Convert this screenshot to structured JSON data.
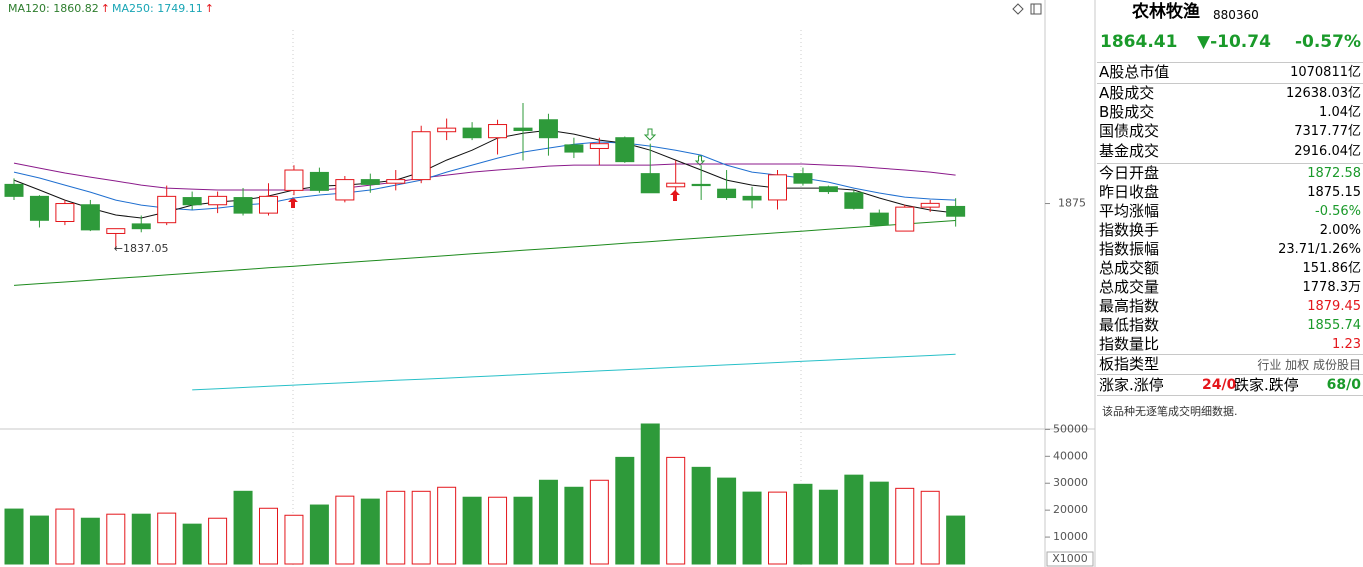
{
  "legend": [
    {
      "text": "MA120: 1860.82",
      "arrow": "↑",
      "color": "#2d7d2d"
    },
    {
      "text": "MA250: 1749.11",
      "arrow": "↑",
      "color": "#18a5b5"
    }
  ],
  "chart_data": [
    {
      "type": "candlestick",
      "ylim": [
        1690,
        2030
      ],
      "yticks": [
        1875
      ],
      "up_color": "#e4161b",
      "down_color": "#2e9a3a",
      "low_label": "←1837.05",
      "open": [
        1891,
        1881,
        1860,
        1874,
        1850,
        1858,
        1859,
        1880,
        1874,
        1880,
        1867,
        1886,
        1901,
        1878,
        1895,
        1892,
        1895,
        1935,
        1938,
        1930,
        1938,
        1945,
        1924,
        1921,
        1930,
        1900,
        1889,
        1891,
        1887,
        1881,
        1878,
        1900,
        1889,
        1884,
        1867,
        1852,
        1872,
        1872.58
      ],
      "high": [
        1896,
        1882,
        1878,
        1878,
        1854,
        1865,
        1890,
        1885,
        1885,
        1888,
        1892,
        1907,
        1905,
        1898,
        1900,
        1903,
        1940,
        1946,
        1943,
        1945,
        1959,
        1950,
        1930,
        1930,
        1931,
        1925,
        1911,
        1907,
        1903,
        1889,
        1903,
        1905,
        1890,
        1886,
        1870,
        1874,
        1878,
        1879.45
      ],
      "low": [
        1878,
        1855,
        1857,
        1852,
        1837.05,
        1851,
        1857,
        1870,
        1867,
        1865,
        1865,
        1882,
        1884,
        1876,
        1884,
        1886,
        1892,
        1928,
        1928,
        1916,
        1911,
        1915,
        1913,
        1907,
        1909,
        1884,
        1883,
        1878,
        1878,
        1871,
        1870,
        1890,
        1883,
        1870,
        1857,
        1852,
        1868,
        1855.74
      ],
      "close": [
        1881,
        1861,
        1875,
        1853,
        1854,
        1854,
        1881,
        1874,
        1881,
        1867,
        1881,
        1903,
        1886,
        1895,
        1891,
        1895,
        1935,
        1938,
        1930,
        1941,
        1936,
        1930,
        1918,
        1925,
        1910,
        1884,
        1892,
        1890,
        1880,
        1878,
        1899,
        1892,
        1885,
        1871,
        1857,
        1872,
        1875.15,
        1864.41
      ],
      "lines": [
        {
          "color": "#1d8a1d",
          "values": [
            1806.6,
            1808.1,
            1809.5,
            1811.0,
            1812.5,
            1813.9,
            1815.4,
            1816.9,
            1818.3,
            1819.8,
            1821.3,
            1822.7,
            1824.2,
            1825.7,
            1827.1,
            1828.6,
            1830.0,
            1831.5,
            1833.0,
            1834.4,
            1835.9,
            1837.4,
            1838.8,
            1840.3,
            1841.8,
            1843.2,
            1844.7,
            1846.2,
            1847.6,
            1849.1,
            1850.6,
            1852.0,
            1853.5,
            1855.0,
            1856.4,
            1857.9,
            1859.3,
            1860.82
          ]
        },
        {
          "color": "#29c0c8",
          "values": [
            null,
            null,
            null,
            null,
            null,
            null,
            null,
            1719.3,
            1720.3,
            1721.3,
            1722.3,
            1723.3,
            1724.3,
            1725.3,
            1726.3,
            1727.3,
            1728.3,
            1729.2,
            1730.2,
            1731.2,
            1732.2,
            1733.2,
            1734.2,
            1735.2,
            1736.2,
            1737.2,
            1738.2,
            1739.2,
            1740.2,
            1741.2,
            1742.2,
            1743.2,
            1744.2,
            1745.2,
            1746.1,
            1747.1,
            1748.1,
            1749.11
          ]
        },
        {
          "color": "#8b1a8b",
          "values": [
            1908.8,
            1904.6,
            1900.5,
            1897.1,
            1893.8,
            1890.4,
            1887.9,
            1887.1,
            1886.3,
            1886.3,
            1886.3,
            1886.3,
            1886.3,
            1887.9,
            1890.4,
            1892.9,
            1896.3,
            1898.8,
            1901.3,
            1903.0,
            1904.6,
            1906.3,
            1907.1,
            1907.1,
            1907.1,
            1907.1,
            1908.0,
            1908.0,
            1908.0,
            1908.0,
            1908.0,
            1908.0,
            1907.1,
            1906.3,
            1904.6,
            1903.0,
            1901.3,
            1898.8
          ]
        },
        {
          "color": "#1f6fd0",
          "values": [
            1901.3,
            1896.3,
            1890.4,
            1884.6,
            1877.9,
            1873.7,
            1871.2,
            1869.6,
            1871.2,
            1873.7,
            1875.4,
            1879.6,
            1882.1,
            1883.8,
            1886.3,
            1890.4,
            1894.6,
            1901.3,
            1907.1,
            1913.0,
            1918.0,
            1921.3,
            1924.6,
            1926.4,
            1925.5,
            1923.0,
            1919.6,
            1915.5,
            1907.1,
            1901.3,
            1898.8,
            1896.3,
            1892.9,
            1887.9,
            1883.8,
            1880.4,
            1878.8,
            1877.9
          ]
        },
        {
          "color": "#111111",
          "values": [
            1894.6,
            1886.3,
            1877.9,
            1871.2,
            1865.4,
            1862.9,
            1867.9,
            1873.7,
            1876.3,
            1877.9,
            1881.3,
            1886.3,
            1889.6,
            1890.4,
            1892.1,
            1894.6,
            1901.3,
            1911.3,
            1919.6,
            1929.7,
            1933.8,
            1936.3,
            1933.0,
            1928.0,
            1925.5,
            1919.6,
            1911.3,
            1903.0,
            1894.6,
            1890.4,
            1887.9,
            1887.9,
            1887.9,
            1886.3,
            1879.6,
            1873.7,
            1869.6,
            1867.1
          ]
        }
      ]
    },
    {
      "type": "bar",
      "ylim": [
        0,
        52000
      ],
      "yticks": [
        10000,
        20000,
        30000,
        40000,
        50000
      ],
      "unit_label": "X1000",
      "values": [
        20400,
        17800,
        20400,
        17000,
        18500,
        18500,
        18900,
        14800,
        17000,
        27000,
        20700,
        18100,
        21900,
        25200,
        24100,
        27000,
        27000,
        28500,
        24800,
        24800,
        24800,
        31100,
        28500,
        31100,
        39600,
        52000,
        39600,
        35900,
        31900,
        26700,
        26700,
        29600,
        27400,
        33000,
        30400,
        28100,
        27000,
        17800
      ]
    }
  ],
  "side_panel": {
    "name": "农林牧渔",
    "code": "880360",
    "price": "1864.41",
    "change": "▼-10.74",
    "change_pct": "-0.57%",
    "quote_color": "#1a9a2a",
    "rows": [
      {
        "label": "A股总市值",
        "value": "1070811亿"
      },
      {
        "label": "A股成交",
        "value": "12638.03亿"
      },
      {
        "label": "B股成交",
        "value": "1.04亿"
      },
      {
        "label": "国债成交",
        "value": "7317.77亿"
      },
      {
        "label": "基金成交",
        "value": "2916.04亿"
      },
      {
        "label": "今日开盘",
        "value": "1872.58",
        "color": "#1a9a2a"
      },
      {
        "label": "昨日收盘",
        "value": "1875.15"
      },
      {
        "label": "平均涨幅",
        "value": "-0.56%",
        "color": "#1a9a2a"
      },
      {
        "label": "指数换手",
        "value": "2.00%"
      },
      {
        "label": "指数振幅",
        "value": "23.71/1.26%"
      },
      {
        "label": "总成交额",
        "value": "151.86亿"
      },
      {
        "label": "总成交量",
        "value": "1778.3万"
      },
      {
        "label": "最高指数",
        "value": "1879.45",
        "color": "#e4161b"
      },
      {
        "label": "最低指数",
        "value": "1855.74",
        "color": "#1a9a2a"
      },
      {
        "label": "指数量比",
        "value": "1.23",
        "color": "#e4161b"
      },
      {
        "label": "板指类型",
        "value": "行业 加权 成份股目",
        "color": "#555555"
      }
    ],
    "breadth": {
      "up_label": "涨家.涨停",
      "up_value": "24/0",
      "down_label": "跌家.跌停",
      "down_value": "68/0"
    },
    "note": "该品种无逐笔成交明细数据."
  }
}
